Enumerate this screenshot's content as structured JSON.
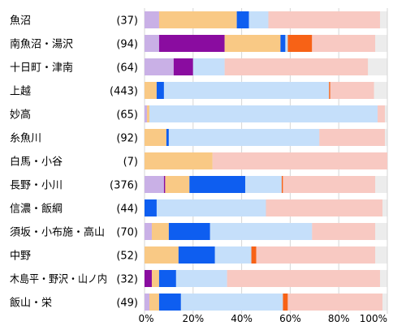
{
  "chart_data": {
    "type": "bar",
    "orientation": "horizontal",
    "stacked": true,
    "grid": true,
    "legend": "none",
    "xlim": [
      0,
      100
    ],
    "x_ticks": [
      "0%",
      "20%",
      "40%",
      "60%",
      "80%",
      "100%"
    ],
    "categories": [
      "魚沼",
      "南魚沼・湯沢",
      "十日町・津南",
      "上越",
      "妙高",
      "糸魚川",
      "白馬・小谷",
      "長野・小川",
      "信濃・飯綱",
      "須坂・小布施・高山",
      "中野",
      "木島平・野沢・山ノ内",
      "飯山・栄"
    ],
    "counts": [
      "(37)",
      "(94)",
      "(64)",
      "(443)",
      "(65)",
      "(92)",
      "(7)",
      "(376)",
      "(44)",
      "(70)",
      "(52)",
      "(32)",
      "(49)"
    ],
    "series": [
      {
        "color": "#c9b0e6",
        "values": [
          6,
          6,
          12,
          0,
          1,
          0,
          0,
          8,
          0,
          3,
          0,
          0,
          2
        ]
      },
      {
        "color": "#8a0ca0",
        "values": [
          0,
          27,
          8,
          0,
          0,
          0,
          0,
          0.5,
          0,
          0,
          0,
          3,
          0
        ]
      },
      {
        "color": "#f9c985",
        "values": [
          32,
          23,
          0,
          5,
          1,
          9,
          28,
          10,
          0,
          7,
          14,
          3,
          4
        ]
      },
      {
        "color": "#0e5ef0",
        "values": [
          5,
          2,
          0,
          3,
          0,
          1,
          0,
          23,
          5,
          17,
          15,
          7,
          9
        ]
      },
      {
        "color": "#c5dffa",
        "values": [
          8,
          1,
          13,
          68,
          94,
          62,
          0,
          15,
          45,
          42,
          15,
          21,
          42
        ]
      },
      {
        "color": "#f76216",
        "values": [
          0,
          10,
          0,
          0.5,
          0,
          0,
          0,
          0.5,
          0,
          0,
          2,
          0,
          2
        ]
      },
      {
        "color": "#f8c9c2",
        "values": [
          46,
          26,
          59,
          18,
          3,
          27,
          72,
          38,
          48,
          26,
          49,
          63,
          39
        ]
      }
    ]
  }
}
